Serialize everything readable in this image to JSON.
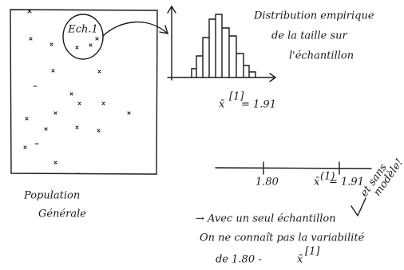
{
  "population": {
    "sample_label": "Ech.1",
    "label": [
      "Population",
      "Générale"
    ]
  },
  "histogram": {
    "caption": [
      "Distribution empirique",
      "de la taille sur",
      "l'échantillon"
    ],
    "mean_symbol": "x̄",
    "mean_index": "[1]",
    "mean_value": "= 1.91"
  },
  "number_line": {
    "left_label": "1.80",
    "right_symbol": "x̄",
    "right_index": "(1)",
    "right_value": "= 1.91",
    "note": [
      "et sans",
      "modèle!"
    ]
  },
  "conclusion": [
    "→ Avec un seul échantillon",
    "On ne connaît pas la variabilité",
    "de  1.80 -",
    "x̄",
    "[1]"
  ]
}
